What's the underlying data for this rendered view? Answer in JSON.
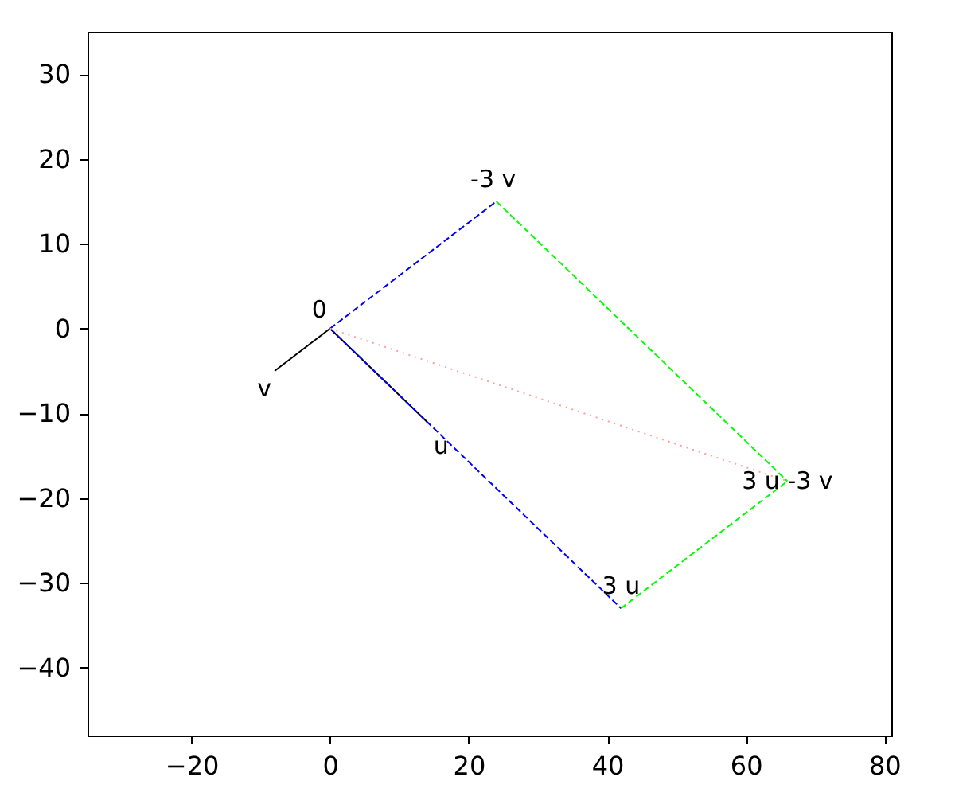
{
  "chart_data": {
    "type": "line",
    "xlim": [
      -35,
      81
    ],
    "ylim": [
      -48,
      35
    ],
    "xticks": [
      -20,
      0,
      20,
      40,
      60,
      80
    ],
    "yticks": [
      -40,
      -30,
      -20,
      -10,
      0,
      10,
      20,
      30
    ],
    "grid": false,
    "marker": "none",
    "series": [
      {
        "color": "#000000",
        "line_style": "solid",
        "x": [
          0,
          -8
        ],
        "values": [
          0,
          -5
        ]
      },
      {
        "color": "#000000",
        "line_style": "solid",
        "x": [
          0,
          14
        ],
        "values": [
          0,
          -11
        ]
      },
      {
        "color": "#0000ff",
        "line_style": "dashed",
        "x": [
          0,
          24
        ],
        "values": [
          0,
          15
        ]
      },
      {
        "color": "#0000ff",
        "line_style": "dashed",
        "x": [
          0,
          42
        ],
        "values": [
          0,
          -33
        ]
      },
      {
        "color": "#00ff00",
        "line_style": "dashed",
        "x": [
          24,
          66
        ],
        "values": [
          15,
          -18
        ]
      },
      {
        "color": "#00ff00",
        "line_style": "dashed",
        "x": [
          42,
          66
        ],
        "values": [
          -33,
          -18
        ]
      },
      {
        "color": "#ffa0a0",
        "line_style": "dotted",
        "x": [
          0,
          66
        ],
        "values": [
          0,
          -18
        ]
      }
    ],
    "annotations": [
      {
        "text": "0",
        "x": 0,
        "y": 0
      },
      {
        "text": "v",
        "x": -8,
        "y": -5
      },
      {
        "text": "u",
        "x": 14,
        "y": -11
      },
      {
        "text": "-3 v",
        "x": 24,
        "y": 15
      },
      {
        "text": "3 u",
        "x": 42,
        "y": -33
      },
      {
        "text": "3 u -3 v",
        "x": 66,
        "y": -18
      }
    ]
  }
}
